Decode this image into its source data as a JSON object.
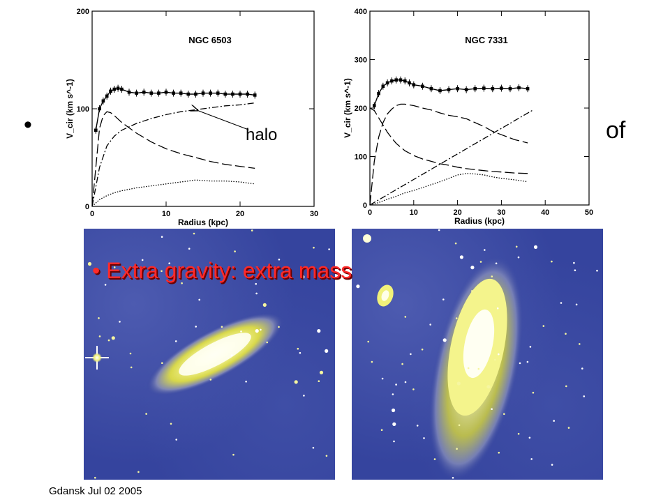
{
  "slide": {
    "bullet_main_fragment": "of",
    "bullet_red": "Extra gravity: extra mass",
    "footer": "Gdansk Jul 02 2005",
    "halo_label": "halo"
  },
  "chart_data": [
    {
      "type": "line",
      "title": "NGC 6503",
      "xlabel": "Radius (kpc)",
      "ylabel": "V_cir (km s^-1)",
      "xlim": [
        0,
        30
      ],
      "ylim": [
        0,
        200
      ],
      "xticks": [
        0,
        10,
        20,
        30
      ],
      "yticks": [
        0,
        100,
        200
      ],
      "grid": false,
      "series": [
        {
          "style": "points-with-errorbars",
          "x": [
            0.5,
            1,
            1.5,
            2,
            2.5,
            3,
            3.5,
            4,
            5,
            6,
            7,
            8,
            9,
            10,
            11,
            12,
            13,
            14,
            15,
            16,
            17,
            18,
            19,
            20,
            21,
            22
          ],
          "y": [
            78,
            100,
            108,
            113,
            118,
            120,
            121,
            120,
            117,
            116,
            117,
            116,
            116,
            117,
            116,
            116,
            115,
            115,
            116,
            116,
            116,
            115,
            115,
            115,
            115,
            114
          ]
        },
        {
          "style": "long-dash",
          "x": [
            0,
            0.5,
            1,
            1.5,
            2,
            2.5,
            3,
            4,
            6,
            8,
            10,
            12,
            14,
            16,
            18,
            20,
            22
          ],
          "y": [
            0,
            40,
            80,
            93,
            97,
            96,
            93,
            86,
            75,
            66,
            59,
            54,
            50,
            46,
            43,
            41,
            39
          ]
        },
        {
          "style": "dash-dot",
          "x": [
            0,
            1,
            2,
            3,
            4,
            6,
            8,
            10,
            12,
            14,
            16,
            18,
            20,
            22
          ],
          "y": [
            0,
            40,
            62,
            72,
            78,
            85,
            90,
            94,
            97,
            99,
            101,
            103,
            104,
            106
          ]
        },
        {
          "style": "dotted",
          "x": [
            0,
            1,
            2,
            3,
            4,
            6,
            8,
            10,
            12,
            14,
            16,
            18,
            20,
            22
          ],
          "y": [
            0,
            7,
            11,
            14,
            16,
            19,
            21,
            23,
            25,
            27,
            26,
            26,
            25,
            23
          ]
        }
      ]
    },
    {
      "type": "line",
      "title": "NGC 7331",
      "xlabel": "Radius (kpc)",
      "ylabel": "V_cir (km s^-1)",
      "xlim": [
        0,
        50
      ],
      "ylim": [
        0,
        400
      ],
      "xticks": [
        0,
        10,
        20,
        30,
        40,
        50
      ],
      "yticks": [
        0,
        100,
        200,
        300,
        400
      ],
      "grid": false,
      "series": [
        {
          "style": "points-with-errorbars",
          "x": [
            1,
            2,
            3,
            4,
            5,
            6,
            7,
            8,
            9,
            10,
            12,
            14,
            16,
            18,
            20,
            22,
            24,
            26,
            28,
            30,
            32,
            34,
            36
          ],
          "y": [
            205,
            230,
            245,
            252,
            256,
            258,
            258,
            256,
            252,
            248,
            245,
            240,
            236,
            238,
            240,
            238,
            240,
            241,
            240,
            241,
            240,
            242,
            240
          ]
        },
        {
          "style": "long-dash",
          "x": [
            0,
            1,
            2,
            3,
            4,
            5,
            6,
            7,
            8,
            10,
            12,
            14,
            16,
            18,
            20,
            22,
            24,
            26,
            28,
            30,
            33,
            36
          ],
          "y": [
            0,
            90,
            140,
            170,
            188,
            198,
            205,
            208,
            208,
            205,
            200,
            196,
            190,
            185,
            182,
            178,
            170,
            162,
            152,
            145,
            135,
            128
          ]
        },
        {
          "style": "long-dash",
          "x": [
            0,
            1,
            2,
            3,
            4,
            5,
            6,
            8,
            10,
            12,
            14,
            16,
            18,
            20,
            22,
            24,
            26,
            28,
            30,
            33,
            36
          ],
          "y": [
            200,
            195,
            180,
            165,
            150,
            138,
            127,
            112,
            102,
            95,
            90,
            85,
            82,
            78,
            75,
            73,
            71,
            69,
            68,
            66,
            65
          ]
        },
        {
          "style": "dash-dot",
          "x": [
            0,
            37
          ],
          "y": [
            0,
            195
          ]
        },
        {
          "style": "dotted",
          "x": [
            0,
            2,
            4,
            6,
            8,
            10,
            12,
            14,
            16,
            18,
            20,
            22,
            24,
            26,
            28,
            30,
            33,
            36
          ],
          "y": [
            0,
            5,
            12,
            18,
            25,
            30,
            36,
            42,
            48,
            55,
            62,
            65,
            64,
            62,
            58,
            55,
            52,
            48
          ]
        }
      ]
    }
  ]
}
